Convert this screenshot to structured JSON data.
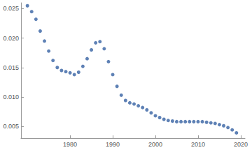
{
  "chart_data": {
    "type": "scatter",
    "x": [
      1970,
      1971,
      1972,
      1973,
      1974,
      1975,
      1976,
      1977,
      1978,
      1979,
      1980,
      1981,
      1982,
      1983,
      1984,
      1985,
      1986,
      1987,
      1988,
      1989,
      1990,
      1991,
      1992,
      1993,
      1994,
      1995,
      1996,
      1997,
      1998,
      1999,
      2000,
      2001,
      2002,
      2003,
      2004,
      2005,
      2006,
      2007,
      2008,
      2009,
      2010,
      2011,
      2012,
      2013,
      2014,
      2015,
      2016,
      2017,
      2018,
      2019
    ],
    "values": [
      0.0255,
      0.0245,
      0.0232,
      0.0212,
      0.0195,
      0.0178,
      0.0162,
      0.015,
      0.0145,
      0.0143,
      0.0141,
      0.0138,
      0.0142,
      0.0152,
      0.0165,
      0.018,
      0.0192,
      0.0194,
      0.0182,
      0.016,
      0.0138,
      0.0118,
      0.0103,
      0.0094,
      0.009,
      0.0088,
      0.0085,
      0.0082,
      0.0078,
      0.0073,
      0.0068,
      0.0065,
      0.0062,
      0.006,
      0.0059,
      0.0058,
      0.0058,
      0.0058,
      0.0058,
      0.0058,
      0.0058,
      0.0058,
      0.0057,
      0.0056,
      0.0055,
      0.0053,
      0.0051,
      0.0048,
      0.0044,
      0.0039
    ],
    "color": "#5e81b5",
    "marker": "circle",
    "xlim": [
      1968.5,
      2021
    ],
    "xticks": [
      1980,
      1990,
      2000,
      2010,
      2020
    ],
    "ylim": [
      0.003,
      0.026
    ],
    "yticks": [
      {
        "value": 0.005,
        "label": "0.005"
      },
      {
        "value": 0.01,
        "label": "0.010"
      },
      {
        "value": 0.015,
        "label": "0.015"
      },
      {
        "value": 0.02,
        "label": "0.020"
      },
      {
        "value": 0.025,
        "label": "0.025"
      }
    ],
    "grid": false
  }
}
